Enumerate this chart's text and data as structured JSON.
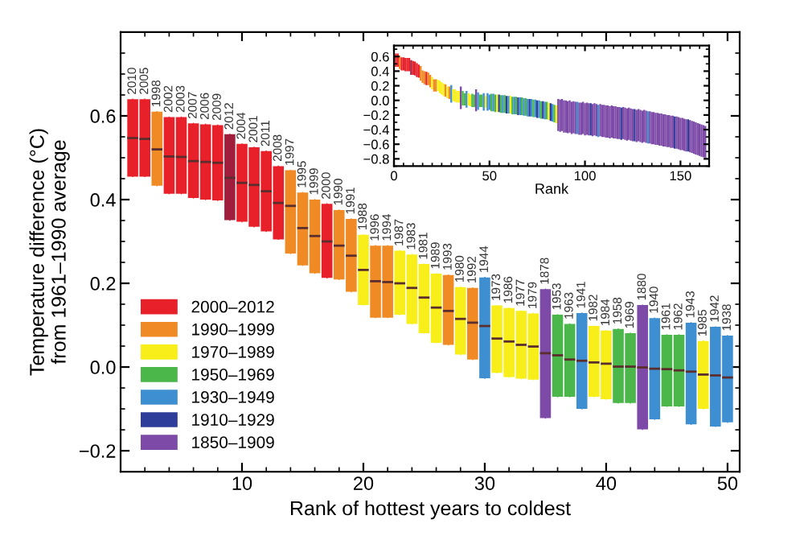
{
  "chart_data": [
    {
      "type": "bar",
      "xlabel": "Rank of hottest years to coldest",
      "ylabel": "Temperature difference (°C)\nfrom 1961–1990 average",
      "xlim": [
        0,
        51
      ],
      "ylim": [
        -0.25,
        0.8
      ],
      "xticks": [
        10,
        20,
        30,
        40,
        50
      ],
      "yticks": [
        {
          "value": -0.2,
          "label": "−0.2"
        },
        {
          "value": 0,
          "label": "0.0"
        },
        {
          "value": 0.2,
          "label": "0.2"
        },
        {
          "value": 0.4,
          "label": "0.4"
        },
        {
          "value": 0.6,
          "label": "0.6"
        }
      ],
      "legend": "bottom left",
      "grid": false,
      "series": [
        {
          "type": "box",
          "name": "2000–2012",
          "color": "#e8202a",
          "colors": [
            "#e8202a",
            "#e8202a",
            "#e8202a",
            "#e8202a",
            "#e8202a",
            "#e8202a",
            "#e8202a",
            "#a01e3c",
            "#e8202a",
            "#e8202a",
            "#e8202a",
            "#e8202a",
            "#e8202a"
          ],
          "x": [
            1,
            2,
            4,
            5,
            6,
            7,
            8,
            9,
            10,
            11,
            12,
            13,
            17
          ],
          "boxes": [
            {
              "low": 0.455,
              "q1": 0.455,
              "median": 0.547,
              "q3": 0.64,
              "high": 0.64
            },
            {
              "low": 0.455,
              "q1": 0.455,
              "median": 0.545,
              "q3": 0.64,
              "high": 0.64
            },
            {
              "low": 0.414,
              "q1": 0.414,
              "median": 0.503,
              "q3": 0.597,
              "high": 0.597
            },
            {
              "low": 0.414,
              "q1": 0.414,
              "median": 0.502,
              "q3": 0.597,
              "high": 0.597
            },
            {
              "low": 0.404,
              "q1": 0.404,
              "median": 0.492,
              "q3": 0.582,
              "high": 0.582
            },
            {
              "low": 0.4,
              "q1": 0.4,
              "median": 0.49,
              "q3": 0.58,
              "high": 0.58
            },
            {
              "low": 0.398,
              "q1": 0.398,
              "median": 0.488,
              "q3": 0.578,
              "high": 0.578
            },
            {
              "low": 0.351,
              "q1": 0.351,
              "median": 0.452,
              "q3": 0.556,
              "high": 0.556
            },
            {
              "low": 0.347,
              "q1": 0.347,
              "median": 0.44,
              "q3": 0.533,
              "high": 0.533
            },
            {
              "low": 0.335,
              "q1": 0.335,
              "median": 0.435,
              "q3": 0.525,
              "high": 0.525
            },
            {
              "low": 0.324,
              "q1": 0.324,
              "median": 0.42,
              "q3": 0.516,
              "high": 0.516
            },
            {
              "low": 0.305,
              "q1": 0.305,
              "median": 0.392,
              "q3": 0.48,
              "high": 0.48
            },
            {
              "low": 0.213,
              "q1": 0.213,
              "median": 0.3,
              "q3": 0.39,
              "high": 0.39
            }
          ]
        },
        {
          "type": "box",
          "name": "1990–1999",
          "color": "#f08a24",
          "x": [
            3,
            14,
            15,
            16,
            18,
            19,
            21,
            22,
            27,
            29
          ],
          "boxes": [
            {
              "low": 0.433,
              "q1": 0.433,
              "median": 0.52,
              "q3": 0.61,
              "high": 0.61
            },
            {
              "low": 0.271,
              "q1": 0.271,
              "median": 0.385,
              "q3": 0.47,
              "high": 0.47
            },
            {
              "low": 0.243,
              "q1": 0.243,
              "median": 0.332,
              "q3": 0.417,
              "high": 0.417
            },
            {
              "low": 0.224,
              "q1": 0.224,
              "median": 0.313,
              "q3": 0.4,
              "high": 0.4
            },
            {
              "low": 0.209,
              "q1": 0.209,
              "median": 0.29,
              "q3": 0.375,
              "high": 0.375
            },
            {
              "low": 0.18,
              "q1": 0.18,
              "median": 0.266,
              "q3": 0.354,
              "high": 0.354
            },
            {
              "low": 0.118,
              "q1": 0.118,
              "median": 0.205,
              "q3": 0.29,
              "high": 0.29
            },
            {
              "low": 0.118,
              "q1": 0.118,
              "median": 0.203,
              "q3": 0.29,
              "high": 0.29
            },
            {
              "low": 0.053,
              "q1": 0.053,
              "median": 0.134,
              "q3": 0.22,
              "high": 0.22
            },
            {
              "low": 0.018,
              "q1": 0.018,
              "median": 0.106,
              "q3": 0.189,
              "high": 0.189
            }
          ]
        },
        {
          "type": "box",
          "name": "1970–1989",
          "color": "#f7ee1a",
          "x": [
            20,
            23,
            24,
            25,
            26,
            28,
            31,
            32,
            33,
            34,
            39,
            40,
            48
          ],
          "boxes": [
            {
              "low": 0.148,
              "q1": 0.148,
              "median": 0.232,
              "q3": 0.316,
              "high": 0.316
            },
            {
              "low": 0.125,
              "q1": 0.125,
              "median": 0.2,
              "q3": 0.278,
              "high": 0.278
            },
            {
              "low": 0.103,
              "q1": 0.103,
              "median": 0.189,
              "q3": 0.269,
              "high": 0.269
            },
            {
              "low": 0.081,
              "q1": 0.081,
              "median": 0.166,
              "q3": 0.246,
              "high": 0.246
            },
            {
              "low": 0.058,
              "q1": 0.058,
              "median": 0.142,
              "q3": 0.223,
              "high": 0.223
            },
            {
              "low": 0.03,
              "q1": 0.03,
              "median": 0.115,
              "q3": 0.191,
              "high": 0.191
            },
            {
              "low": -0.014,
              "q1": -0.014,
              "median": 0.068,
              "q3": 0.147,
              "high": 0.147
            },
            {
              "low": -0.024,
              "q1": -0.024,
              "median": 0.061,
              "q3": 0.141,
              "high": 0.141
            },
            {
              "low": -0.028,
              "q1": -0.028,
              "median": 0.053,
              "q3": 0.134,
              "high": 0.134
            },
            {
              "low": -0.03,
              "q1": -0.03,
              "median": 0.049,
              "q3": 0.128,
              "high": 0.128
            },
            {
              "low": -0.071,
              "q1": -0.071,
              "median": 0.011,
              "q3": 0.098,
              "high": 0.098
            },
            {
              "low": -0.077,
              "q1": -0.077,
              "median": 0.008,
              "q3": 0.087,
              "high": 0.087
            },
            {
              "low": -0.1,
              "q1": -0.1,
              "median": -0.018,
              "q3": 0.062,
              "high": 0.062
            }
          ]
        },
        {
          "type": "box",
          "name": "1950–1969",
          "color": "#4bb649",
          "x": [
            36,
            37,
            41,
            42,
            45,
            46
          ],
          "boxes": [
            {
              "low": -0.071,
              "q1": -0.071,
              "median": 0.028,
              "q3": 0.125,
              "high": 0.125
            },
            {
              "low": -0.071,
              "q1": -0.071,
              "median": 0.018,
              "q3": 0.103,
              "high": 0.103
            },
            {
              "low": -0.086,
              "q1": -0.086,
              "median": 0.001,
              "q3": 0.091,
              "high": 0.091
            },
            {
              "low": -0.086,
              "q1": -0.086,
              "median": 0.001,
              "q3": 0.081,
              "high": 0.081
            },
            {
              "low": -0.094,
              "q1": -0.094,
              "median": -0.005,
              "q3": 0.077,
              "high": 0.077
            },
            {
              "low": -0.094,
              "q1": -0.094,
              "median": -0.008,
              "q3": 0.077,
              "high": 0.077
            }
          ]
        },
        {
          "type": "box",
          "name": "1930–1949",
          "color": "#3d8fd1",
          "x": [
            30,
            38,
            44,
            47,
            49,
            50
          ],
          "boxes": [
            {
              "low": -0.027,
              "q1": -0.027,
              "median": 0.098,
              "q3": 0.214,
              "high": 0.214
            },
            {
              "low": -0.1,
              "q1": -0.1,
              "median": 0.015,
              "q3": 0.129,
              "high": 0.129
            },
            {
              "low": -0.125,
              "q1": -0.125,
              "median": -0.004,
              "q3": 0.117,
              "high": 0.117
            },
            {
              "low": -0.137,
              "q1": -0.137,
              "median": -0.011,
              "q3": 0.106,
              "high": 0.106
            },
            {
              "low": -0.142,
              "q1": -0.142,
              "median": -0.02,
              "q3": 0.096,
              "high": 0.096
            },
            {
              "low": -0.132,
              "q1": -0.132,
              "median": -0.025,
              "q3": 0.075,
              "high": 0.075
            }
          ]
        },
        {
          "type": "box",
          "name": "1910–1929",
          "color": "#2e3d9a"
        },
        {
          "type": "box",
          "name": "1850–1909",
          "color": "#7d4aa8",
          "x": [
            35,
            43
          ],
          "boxes": [
            {
              "low": -0.122,
              "q1": -0.122,
              "median": 0.033,
              "q3": 0.186,
              "high": 0.186
            },
            {
              "low": -0.149,
              "q1": -0.149,
              "median": -0.001,
              "q3": 0.148,
              "high": 0.148
            }
          ]
        }
      ],
      "annotations": [
        {
          "text": "2010",
          "x": 1,
          "y": 0.64
        },
        {
          "text": "2005",
          "x": 2,
          "y": 0.64
        },
        {
          "text": "1998",
          "x": 3,
          "y": 0.61
        },
        {
          "text": "2002",
          "x": 4,
          "y": 0.597
        },
        {
          "text": "2003",
          "x": 5,
          "y": 0.597
        },
        {
          "text": "2007",
          "x": 6,
          "y": 0.582
        },
        {
          "text": "2006",
          "x": 7,
          "y": 0.58
        },
        {
          "text": "2009",
          "x": 8,
          "y": 0.578
        },
        {
          "text": "2012",
          "x": 9,
          "y": 0.556
        },
        {
          "text": "2004",
          "x": 10,
          "y": 0.533
        },
        {
          "text": "2001",
          "x": 11,
          "y": 0.525
        },
        {
          "text": "2011",
          "x": 12,
          "y": 0.516
        },
        {
          "text": "2008",
          "x": 13,
          "y": 0.48
        },
        {
          "text": "1997",
          "x": 14,
          "y": 0.47
        },
        {
          "text": "1995",
          "x": 15,
          "y": 0.417
        },
        {
          "text": "1999",
          "x": 16,
          "y": 0.4
        },
        {
          "text": "2000",
          "x": 17,
          "y": 0.39
        },
        {
          "text": "1990",
          "x": 18,
          "y": 0.375
        },
        {
          "text": "1991",
          "x": 19,
          "y": 0.354
        },
        {
          "text": "1988",
          "x": 20,
          "y": 0.316
        },
        {
          "text": "1996",
          "x": 21,
          "y": 0.29
        },
        {
          "text": "1994",
          "x": 22,
          "y": 0.29
        },
        {
          "text": "1987",
          "x": 23,
          "y": 0.278
        },
        {
          "text": "1983",
          "x": 24,
          "y": 0.269
        },
        {
          "text": "1981",
          "x": 25,
          "y": 0.246
        },
        {
          "text": "1989",
          "x": 26,
          "y": 0.223
        },
        {
          "text": "1993",
          "x": 27,
          "y": 0.22
        },
        {
          "text": "1980",
          "x": 28,
          "y": 0.191
        },
        {
          "text": "1992",
          "x": 29,
          "y": 0.189
        },
        {
          "text": "1944",
          "x": 30,
          "y": 0.214
        },
        {
          "text": "1973",
          "x": 31,
          "y": 0.147
        },
        {
          "text": "1986",
          "x": 32,
          "y": 0.141
        },
        {
          "text": "1977",
          "x": 33,
          "y": 0.134
        },
        {
          "text": "1979",
          "x": 34,
          "y": 0.128
        },
        {
          "text": "1878",
          "x": 35,
          "y": 0.186
        },
        {
          "text": "1953",
          "x": 36,
          "y": 0.125
        },
        {
          "text": "1963",
          "x": 37,
          "y": 0.103
        },
        {
          "text": "1941",
          "x": 38,
          "y": 0.129
        },
        {
          "text": "1982",
          "x": 39,
          "y": 0.098
        },
        {
          "text": "1984",
          "x": 40,
          "y": 0.087
        },
        {
          "text": "1958",
          "x": 41,
          "y": 0.091
        },
        {
          "text": "1969",
          "x": 42,
          "y": 0.081
        },
        {
          "text": "1880",
          "x": 43,
          "y": 0.148
        },
        {
          "text": "1940",
          "x": 44,
          "y": 0.117
        },
        {
          "text": "1961",
          "x": 45,
          "y": 0.077
        },
        {
          "text": "1962",
          "x": 46,
          "y": 0.077
        },
        {
          "text": "1943",
          "x": 47,
          "y": 0.106
        },
        {
          "text": "1985",
          "x": 48,
          "y": 0.062
        },
        {
          "text": "1942",
          "x": 49,
          "y": 0.096
        },
        {
          "text": "1938",
          "x": 50,
          "y": 0.075
        }
      ]
    },
    {
      "type": "bar",
      "xlabel": "Rank",
      "xlim": [
        0,
        165
      ],
      "ylim": [
        -0.9,
        0.75
      ],
      "xticks": [
        0,
        50,
        100,
        150
      ],
      "yticks": [
        {
          "value": -0.8,
          "label": "−0.8"
        },
        {
          "value": -0.6,
          "label": "−0.6"
        },
        {
          "value": -0.4,
          "label": "−0.4"
        },
        {
          "value": -0.2,
          "label": "−0.2"
        },
        {
          "value": 0,
          "label": "0.0"
        },
        {
          "value": 0.2,
          "label": "0.2"
        },
        {
          "value": 0.4,
          "label": "0.4"
        },
        {
          "value": 0.6,
          "label": "0.6"
        }
      ],
      "grid": false,
      "series": [
        {
          "x": [
            1,
            2,
            3,
            4,
            5,
            6,
            7,
            8,
            9,
            10,
            11,
            12,
            13,
            14,
            15,
            16,
            17,
            18,
            19,
            20,
            21,
            22,
            23,
            24,
            25,
            26,
            27,
            28,
            29,
            30,
            31,
            32,
            33,
            34,
            35,
            36,
            37,
            38,
            39,
            40,
            41,
            42,
            43,
            44,
            45,
            46,
            47,
            48,
            49,
            50,
            51,
            52,
            53,
            54,
            55,
            56,
            57,
            58,
            59,
            60,
            61,
            62,
            63,
            64,
            65,
            66,
            67,
            68,
            69,
            70,
            71,
            72,
            73,
            74,
            75,
            76,
            77,
            78,
            79,
            80,
            81,
            82,
            83,
            84,
            85,
            86,
            87,
            88,
            89,
            90,
            91,
            92,
            93,
            94,
            95,
            96,
            97,
            98,
            99,
            100,
            101,
            102,
            103,
            104,
            105,
            106,
            107,
            108,
            109,
            110,
            111,
            112,
            113,
            114,
            115,
            116,
            117,
            118,
            119,
            120,
            121,
            122,
            123,
            124,
            125,
            126,
            127,
            128,
            129,
            130,
            131,
            132,
            133,
            134,
            135,
            136,
            137,
            138,
            139,
            140,
            141,
            142,
            143,
            144,
            145,
            146,
            147,
            148,
            149,
            150,
            151,
            152,
            153,
            154,
            155,
            156,
            157,
            158,
            159,
            160,
            161,
            162,
            163
          ],
          "base": [
            0.46,
            0.46,
            0.43,
            0.41,
            0.41,
            0.4,
            0.4,
            0.4,
            0.35,
            0.35,
            0.34,
            0.32,
            0.31,
            0.27,
            0.24,
            0.22,
            0.21,
            0.21,
            0.18,
            0.15,
            0.12,
            0.12,
            0.13,
            0.1,
            0.08,
            0.06,
            0.05,
            0.03,
            0.02,
            -0.03,
            -0.01,
            -0.02,
            -0.03,
            -0.03,
            -0.12,
            -0.07,
            -0.07,
            -0.1,
            -0.07,
            -0.08,
            -0.09,
            -0.09,
            -0.15,
            -0.13,
            -0.09,
            -0.09,
            -0.14,
            -0.1,
            -0.14,
            -0.13,
            -0.15,
            -0.15,
            -0.16,
            -0.16,
            -0.16,
            -0.17,
            -0.17,
            -0.17,
            -0.18,
            -0.18,
            -0.18,
            -0.19,
            -0.19,
            -0.19,
            -0.2,
            -0.2,
            -0.2,
            -0.21,
            -0.21,
            -0.22,
            -0.22,
            -0.22,
            -0.23,
            -0.23,
            -0.24,
            -0.24,
            -0.25,
            -0.25,
            -0.26,
            -0.26,
            -0.27,
            -0.28,
            -0.29,
            -0.3,
            -0.31,
            -0.42,
            -0.43,
            -0.42,
            -0.44,
            -0.44,
            -0.45,
            -0.44,
            -0.46,
            -0.45,
            -0.46,
            -0.46,
            -0.47,
            -0.47,
            -0.46,
            -0.48,
            -0.47,
            -0.48,
            -0.48,
            -0.49,
            -0.48,
            -0.49,
            -0.5,
            -0.49,
            -0.5,
            -0.5,
            -0.51,
            -0.51,
            -0.52,
            -0.51,
            -0.52,
            -0.52,
            -0.53,
            -0.53,
            -0.54,
            -0.53,
            -0.54,
            -0.55,
            -0.54,
            -0.55,
            -0.56,
            -0.56,
            -0.57,
            -0.56,
            -0.57,
            -0.58,
            -0.57,
            -0.58,
            -0.59,
            -0.59,
            -0.6,
            -0.6,
            -0.61,
            -0.61,
            -0.62,
            -0.62,
            -0.63,
            -0.63,
            -0.64,
            -0.64,
            -0.65,
            -0.65,
            -0.66,
            -0.66,
            -0.67,
            -0.68,
            -0.68,
            -0.69,
            -0.7,
            -0.7,
            -0.71,
            -0.72,
            -0.73,
            -0.74,
            -0.75,
            -0.76,
            -0.77,
            -0.78,
            -0.79
          ],
          "values": [
            0.18,
            0.18,
            0.18,
            0.18,
            0.18,
            0.18,
            0.18,
            0.18,
            0.2,
            0.19,
            0.19,
            0.19,
            0.18,
            0.2,
            0.17,
            0.18,
            0.18,
            0.17,
            0.17,
            0.17,
            0.17,
            0.17,
            0.15,
            0.17,
            0.17,
            0.17,
            0.17,
            0.16,
            0.17,
            0.24,
            0.16,
            0.17,
            0.16,
            0.16,
            0.31,
            0.2,
            0.17,
            0.23,
            0.17,
            0.16,
            0.18,
            0.17,
            0.3,
            0.24,
            0.17,
            0.17,
            0.24,
            0.16,
            0.24,
            0.21,
            0.24,
            0.24,
            0.24,
            0.24,
            0.24,
            0.24,
            0.24,
            0.24,
            0.24,
            0.24,
            0.24,
            0.24,
            0.24,
            0.24,
            0.24,
            0.24,
            0.24,
            0.24,
            0.24,
            0.24,
            0.24,
            0.24,
            0.24,
            0.24,
            0.24,
            0.24,
            0.24,
            0.24,
            0.24,
            0.24,
            0.24,
            0.24,
            0.24,
            0.24,
            0.24,
            0.44,
            0.44,
            0.44,
            0.44,
            0.44,
            0.44,
            0.44,
            0.44,
            0.44,
            0.44,
            0.44,
            0.44,
            0.44,
            0.44,
            0.44,
            0.44,
            0.44,
            0.44,
            0.44,
            0.44,
            0.44,
            0.44,
            0.44,
            0.44,
            0.44,
            0.44,
            0.44,
            0.44,
            0.44,
            0.44,
            0.44,
            0.44,
            0.44,
            0.44,
            0.44,
            0.44,
            0.44,
            0.44,
            0.44,
            0.44,
            0.44,
            0.44,
            0.44,
            0.44,
            0.44,
            0.44,
            0.44,
            0.44,
            0.44,
            0.44,
            0.44,
            0.44,
            0.44,
            0.44,
            0.44,
            0.44,
            0.44,
            0.44,
            0.44,
            0.44,
            0.44,
            0.44,
            0.44,
            0.44,
            0.44,
            0.44,
            0.44,
            0.44,
            0.44,
            0.44,
            0.44,
            0.44,
            0.44,
            0.44,
            0.44,
            0.44,
            0.44,
            0.44
          ],
          "colors": [
            "#e8202a",
            "#e8202a",
            "#f08a24",
            "#e8202a",
            "#e8202a",
            "#e8202a",
            "#e8202a",
            "#e8202a",
            "#a01e3c",
            "#e8202a",
            "#e8202a",
            "#e8202a",
            "#e8202a",
            "#f08a24",
            "#f08a24",
            "#f08a24",
            "#e8202a",
            "#f08a24",
            "#f08a24",
            "#f7ee1a",
            "#f08a24",
            "#f08a24",
            "#f7ee1a",
            "#f7ee1a",
            "#f7ee1a",
            "#f7ee1a",
            "#f08a24",
            "#f7ee1a",
            "#f08a24",
            "#3d8fd1",
            "#f7ee1a",
            "#f7ee1a",
            "#f7ee1a",
            "#f7ee1a",
            "#7d4aa8",
            "#4bb649",
            "#4bb649",
            "#3d8fd1",
            "#f7ee1a",
            "#f7ee1a",
            "#4bb649",
            "#4bb649",
            "#7d4aa8",
            "#3d8fd1",
            "#4bb649",
            "#4bb649",
            "#3d8fd1",
            "#f7ee1a",
            "#3d8fd1",
            "#3d8fd1",
            "#4bb649",
            "#3d8fd1",
            "#4bb649",
            "#f7ee1a",
            "#2e3d9a",
            "#4bb649",
            "#3d8fd1",
            "#4bb649",
            "#2e3d9a",
            "#3d8fd1",
            "#f7ee1a",
            "#4bb649",
            "#3d8fd1",
            "#4bb649",
            "#2e3d9a",
            "#3d8fd1",
            "#4bb649",
            "#3d8fd1",
            "#4bb649",
            "#3d8fd1",
            "#2e3d9a",
            "#3d8fd1",
            "#4bb649",
            "#3d8fd1",
            "#2e3d9a",
            "#3d8fd1",
            "#4bb649",
            "#2e3d9a",
            "#3d8fd1",
            "#4bb649",
            "#f7ee1a",
            "#2e3d9a",
            "#3d8fd1",
            "#4bb649",
            "#f7ee1a",
            "#7d4aa8",
            "#7d4aa8",
            "#7d4aa8",
            "#7d4aa8",
            "#7d4aa8",
            "#7d4aa8",
            "#7d4aa8",
            "#7d4aa8",
            "#7d4aa8",
            "#7d4aa8",
            "#3d8fd1",
            "#7d4aa8",
            "#7d4aa8",
            "#7d4aa8",
            "#7d4aa8",
            "#7d4aa8",
            "#7d4aa8",
            "#2e3d9a",
            "#7d4aa8",
            "#7d4aa8",
            "#7d4aa8",
            "#3d8fd1",
            "#7d4aa8",
            "#7d4aa8",
            "#7d4aa8",
            "#7d4aa8",
            "#7d4aa8",
            "#7d4aa8",
            "#7d4aa8",
            "#7d4aa8",
            "#7d4aa8",
            "#7d4aa8",
            "#7d4aa8",
            "#2e3d9a",
            "#7d4aa8",
            "#7d4aa8",
            "#7d4aa8",
            "#7d4aa8",
            "#7d4aa8",
            "#7d4aa8",
            "#2e3d9a",
            "#7d4aa8",
            "#7d4aa8",
            "#7d4aa8",
            "#7d4aa8",
            "#7d4aa8",
            "#7d4aa8",
            "#3d8fd1",
            "#7d4aa8",
            "#7d4aa8",
            "#7d4aa8",
            "#7d4aa8",
            "#7d4aa8",
            "#7d4aa8",
            "#7d4aa8",
            "#7d4aa8",
            "#7d4aa8",
            "#7d4aa8",
            "#7d4aa8",
            "#7d4aa8",
            "#7d4aa8",
            "#2e3d9a",
            "#7d4aa8",
            "#7d4aa8",
            "#7d4aa8",
            "#7d4aa8",
            "#7d4aa8",
            "#7d4aa8",
            "#2e3d9a",
            "#7d4aa8",
            "#7d4aa8",
            "#7d4aa8",
            "#7d4aa8",
            "#7d4aa8",
            "#7d4aa8",
            "#7d4aa8",
            "#7d4aa8",
            "#7d4aa8"
          ]
        }
      ]
    }
  ]
}
